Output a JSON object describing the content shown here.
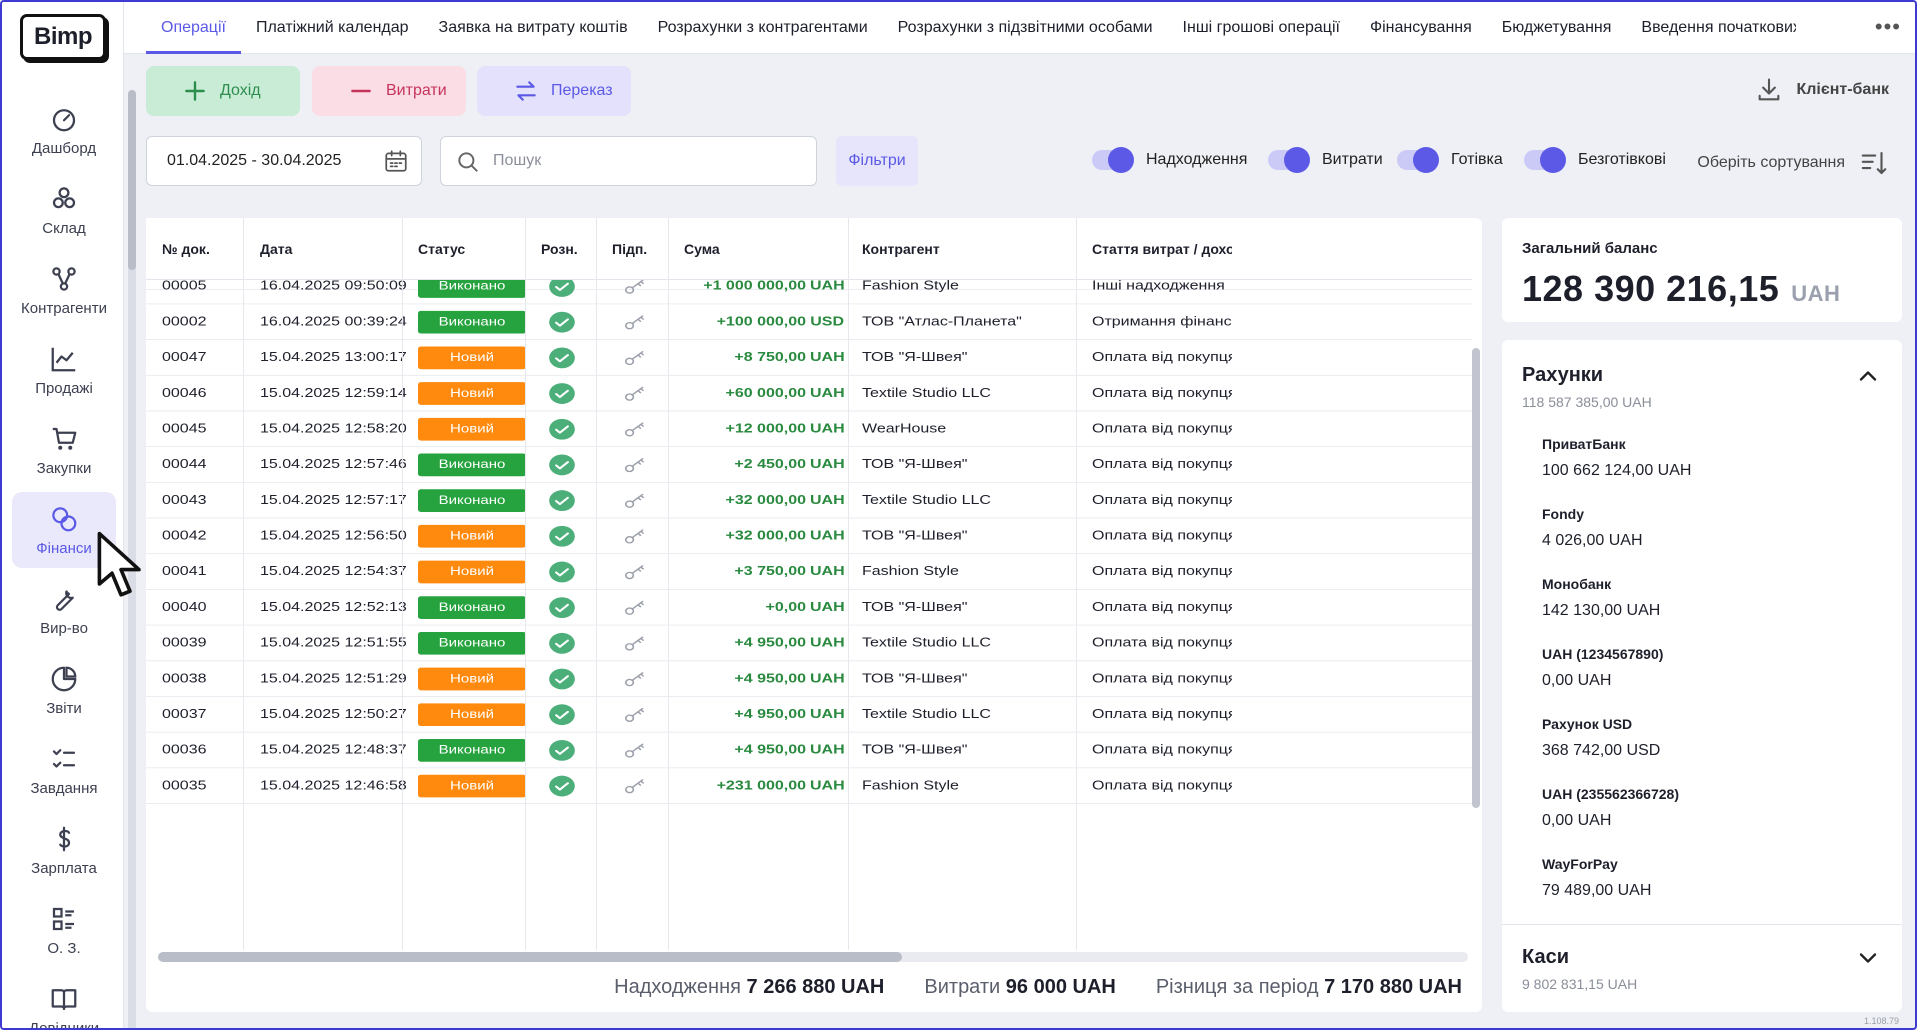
{
  "app": {
    "logo": "Bimp",
    "version": "1.108.79"
  },
  "sidebar": {
    "items": [
      {
        "label": "Дашборд",
        "icon": "dashboard-icon"
      },
      {
        "label": "Склад",
        "icon": "warehouse-icon"
      },
      {
        "label": "Контрагенти",
        "icon": "contractors-icon"
      },
      {
        "label": "Продажі",
        "icon": "sales-chart-icon"
      },
      {
        "label": "Закупки",
        "icon": "cart-icon"
      },
      {
        "label": "Фінанси",
        "icon": "coins-icon",
        "active": true
      },
      {
        "label": "Вир-во",
        "icon": "wrench-icon"
      },
      {
        "label": "Звіти",
        "icon": "pie-chart-icon"
      },
      {
        "label": "Завдання",
        "icon": "tasks-icon"
      },
      {
        "label": "Зарплата",
        "icon": "dollar-icon"
      },
      {
        "label": "О. З.",
        "icon": "assets-icon"
      },
      {
        "label": "Довідники",
        "icon": "book-icon"
      }
    ]
  },
  "tabs": [
    "Операції",
    "Платіжний календар",
    "Заявка на витрату коштів",
    "Розрахунки з контрагентами",
    "Розрахунки з підзвітними особами",
    "Інші грошові операції",
    "Фінансування",
    "Бюджетування",
    "Введення початкових"
  ],
  "actions": {
    "income": "Дохід",
    "expense": "Витрати",
    "transfer": "Переказ",
    "client_bank": "Клієнт-банк"
  },
  "filters": {
    "date_range": "01.04.2025 - 30.04.2025",
    "search_placeholder": "Пошук",
    "filters_button": "Фільтри",
    "toggles": [
      "Надходження",
      "Витрати",
      "Готівка",
      "Безготівкові"
    ],
    "sort_label": "Оберіть сортування"
  },
  "table": {
    "headers": [
      "№ док.",
      "Дата",
      "Статус",
      "Розн.",
      "Підп.",
      "Сума",
      "Контрагент",
      "Стаття витрат / доходів"
    ],
    "status_labels": {
      "done": "Виконано",
      "new": "Новий"
    },
    "rows": [
      {
        "doc": "00005",
        "date": "16.04.2025 09:50:09",
        "status": "done",
        "amount": "+1 000 000,00",
        "currency": "UAH",
        "contractor": "Fashion Style",
        "article": "Інші надходження"
      },
      {
        "doc": "00002",
        "date": "16.04.2025 00:39:24",
        "status": "done",
        "amount": "+100 000,00",
        "currency": "USD",
        "contractor": "ТОВ \"Атлас-Планета\"",
        "article": "Отримання фінансових"
      },
      {
        "doc": "00047",
        "date": "15.04.2025 13:00:17",
        "status": "new",
        "amount": "+8 750,00",
        "currency": "UAH",
        "contractor": "ТОВ \"Я-Швея\"",
        "article": "Оплата від покупця"
      },
      {
        "doc": "00046",
        "date": "15.04.2025 12:59:14",
        "status": "new",
        "amount": "+60 000,00",
        "currency": "UAH",
        "contractor": "Textile Studio LLC",
        "article": "Оплата від покупця"
      },
      {
        "doc": "00045",
        "date": "15.04.2025 12:58:20",
        "status": "new",
        "amount": "+12 000,00",
        "currency": "UAH",
        "contractor": "WearHouse",
        "article": "Оплата від покупця"
      },
      {
        "doc": "00044",
        "date": "15.04.2025 12:57:46",
        "status": "done",
        "amount": "+2 450,00",
        "currency": "UAH",
        "contractor": "ТОВ \"Я-Швея\"",
        "article": "Оплата від покупця"
      },
      {
        "doc": "00043",
        "date": "15.04.2025 12:57:17",
        "status": "done",
        "amount": "+32 000,00",
        "currency": "UAH",
        "contractor": "Textile Studio LLC",
        "article": "Оплата від покупця"
      },
      {
        "doc": "00042",
        "date": "15.04.2025 12:56:50",
        "status": "new",
        "amount": "+32 000,00",
        "currency": "UAH",
        "contractor": "ТОВ \"Я-Швея\"",
        "article": "Оплата від покупця"
      },
      {
        "doc": "00041",
        "date": "15.04.2025 12:54:37",
        "status": "new",
        "amount": "+3 750,00",
        "currency": "UAH",
        "contractor": "Fashion Style",
        "article": "Оплата від покупця"
      },
      {
        "doc": "00040",
        "date": "15.04.2025 12:52:13",
        "status": "done",
        "amount": "+0,00",
        "currency": "UAH",
        "contractor": "ТОВ \"Я-Швея\"",
        "article": "Оплата від покупця"
      },
      {
        "doc": "00039",
        "date": "15.04.2025 12:51:55",
        "status": "done",
        "amount": "+4 950,00",
        "currency": "UAH",
        "contractor": "Textile Studio LLC",
        "article": "Оплата від покупця"
      },
      {
        "doc": "00038",
        "date": "15.04.2025 12:51:29",
        "status": "new",
        "amount": "+4 950,00",
        "currency": "UAH",
        "contractor": "ТОВ \"Я-Швея\"",
        "article": "Оплата від покупця"
      },
      {
        "doc": "00037",
        "date": "15.04.2025 12:50:27",
        "status": "new",
        "amount": "+4 950,00",
        "currency": "UAH",
        "contractor": "Textile Studio LLC",
        "article": "Оплата від покупця"
      },
      {
        "doc": "00036",
        "date": "15.04.2025 12:48:37",
        "status": "done",
        "amount": "+4 950,00",
        "currency": "UAH",
        "contractor": "ТОВ \"Я-Швея\"",
        "article": "Оплата від покупця"
      },
      {
        "doc": "00035",
        "date": "15.04.2025 12:46:58",
        "status": "new",
        "amount": "+231 000,00",
        "currency": "UAH",
        "contractor": "Fashion Style",
        "article": "Оплата від покупця"
      }
    ],
    "totals": {
      "income_label": "Надходження",
      "income": "7 266 880 UAH",
      "expense_label": "Витрати",
      "expense": "96 000 UAH",
      "diff_label": "Різниця за період",
      "diff": "7 170 880 UAH"
    }
  },
  "balance": {
    "label": "Загальний баланс",
    "value": "128 390 216,15",
    "currency": "UAH"
  },
  "accounts": {
    "title": "Рахунки",
    "subtitle": "118 587 385,00 UAH",
    "items": [
      {
        "name": "ПриватБанк",
        "value": "100 662 124,00 UAH"
      },
      {
        "name": "Fondy",
        "value": "4 026,00 UAH"
      },
      {
        "name": "Монобанк",
        "value": "142 130,00 UAH"
      },
      {
        "name": "UAH (1234567890)",
        "value": "0,00 UAH"
      },
      {
        "name": "Рахунок USD",
        "value": "368 742,00 USD"
      },
      {
        "name": "UAH (235562366728)",
        "value": "0,00 UAH"
      },
      {
        "name": "WayForPay",
        "value": "79 489,00 UAH"
      }
    ]
  },
  "cash": {
    "title": "Каси",
    "subtitle": "9 802 831,15 UAH"
  },
  "colors": {
    "accent": "#5b59e6",
    "done": "#26a33f",
    "new": "#ff8a0d",
    "income": "#2a8a3f",
    "expense": "#c6335b"
  }
}
